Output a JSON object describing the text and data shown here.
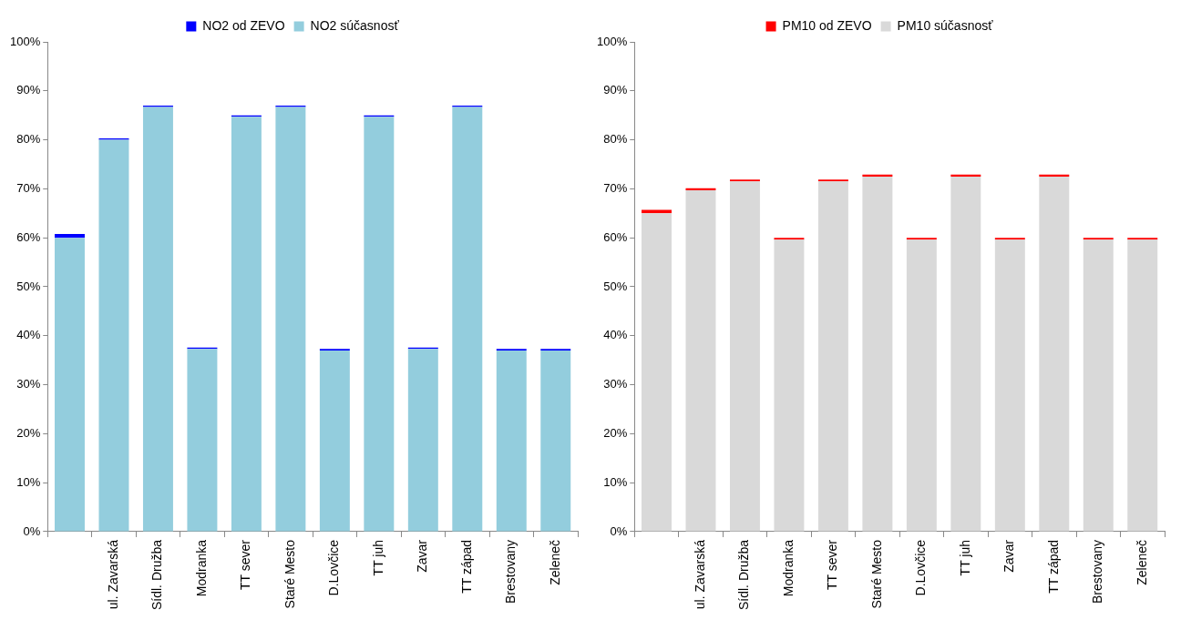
{
  "chart_data": [
    {
      "type": "bar",
      "stacked": true,
      "categories": [
        null,
        "ul. Zavarská",
        "Sídl. Družba",
        "Modranka",
        "TT sever",
        "Staré Mesto",
        "D.Lovčice",
        "TT juh",
        "Zavar",
        "TT západ",
        "Brestovany",
        "Zeleneč"
      ],
      "series": [
        {
          "name": "NO2 súčasnosť",
          "color": "#93cddd",
          "values": [
            60,
            80,
            86.7,
            37.3,
            84.7,
            86.7,
            37,
            84.7,
            37.3,
            86.7,
            37,
            37
          ]
        },
        {
          "name": "NO2 od ZEVO",
          "color": "#0000ff",
          "values": [
            0.8,
            0.3,
            0.3,
            0.3,
            0.3,
            0.3,
            0.3,
            0.3,
            0.3,
            0.3,
            0.3,
            0.3
          ]
        }
      ],
      "ylim": [
        0,
        100
      ],
      "yticks": [
        {
          "value": 0,
          "label": "0%"
        },
        {
          "value": 10,
          "label": "10%"
        },
        {
          "value": 20,
          "label": "20%"
        },
        {
          "value": 30,
          "label": "30%"
        },
        {
          "value": 40,
          "label": "40%"
        },
        {
          "value": 50,
          "label": "50%"
        },
        {
          "value": 60,
          "label": "60%"
        },
        {
          "value": 70,
          "label": "70%"
        },
        {
          "value": 80,
          "label": "80%"
        },
        {
          "value": 90,
          "label": "90%"
        },
        {
          "value": 100,
          "label": "100%"
        }
      ],
      "grid": false,
      "legend": "top"
    },
    {
      "type": "bar",
      "stacked": true,
      "categories": [
        null,
        "ul. Zavarská",
        "Sídl. Družba",
        "Modranka",
        "TT sever",
        "Staré Mesto",
        "D.Lovčice",
        "TT juh",
        "Zavar",
        "TT západ",
        "Brestovany",
        "Zeleneč"
      ],
      "series": [
        {
          "name": "PM10 súčasnosť",
          "color": "#d9d9d9",
          "values": [
            65,
            69.7,
            71.5,
            59.6,
            71.5,
            72.5,
            59.6,
            72.5,
            59.6,
            72.5,
            59.6,
            59.6
          ]
        },
        {
          "name": "PM10 od ZEVO",
          "color": "#ff0000",
          "values": [
            0.7,
            0.4,
            0.4,
            0.4,
            0.4,
            0.4,
            0.4,
            0.4,
            0.4,
            0.4,
            0.4,
            0.4
          ]
        }
      ],
      "ylim": [
        0,
        100
      ],
      "yticks": [
        {
          "value": 0,
          "label": "0%"
        },
        {
          "value": 10,
          "label": "10%"
        },
        {
          "value": 20,
          "label": "20%"
        },
        {
          "value": 30,
          "label": "30%"
        },
        {
          "value": 40,
          "label": "40%"
        },
        {
          "value": 50,
          "label": "50%"
        },
        {
          "value": 60,
          "label": "60%"
        },
        {
          "value": 70,
          "label": "70%"
        },
        {
          "value": 80,
          "label": "80%"
        },
        {
          "value": 90,
          "label": "90%"
        },
        {
          "value": 100,
          "label": "100%"
        }
      ],
      "grid": false,
      "legend": "top"
    }
  ]
}
